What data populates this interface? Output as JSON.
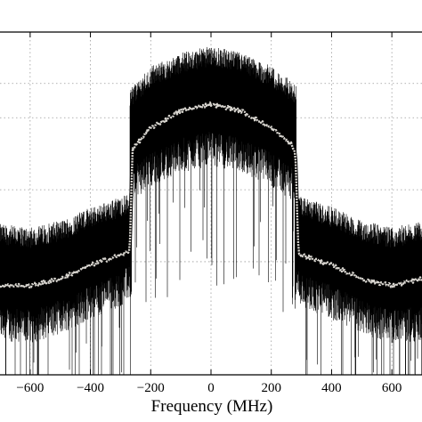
{
  "chart_data": {
    "type": "line",
    "title": "",
    "xlabel": "Frequency (MHz)",
    "ylabel": "",
    "xlim": [
      -700,
      700
    ],
    "ylim": [
      0,
      10
    ],
    "grid": true,
    "x_ticks": [
      -600,
      -400,
      -200,
      0,
      200,
      400,
      600
    ],
    "x_tick_labels": [
      "−600",
      "−400",
      "−200",
      "0",
      "200",
      "400",
      "600"
    ],
    "y_grid_values": [
      8.5,
      7.5,
      5.4,
      3.3
    ],
    "series": [
      {
        "style": "noisy-spectrum",
        "color": "#000000",
        "segments": [
          {
            "x": [
              -700,
              -600,
              -500,
              -400,
              -300,
              -270
            ],
            "upper": [
              4.1,
              4.0,
              4.2,
              4.6,
              4.9,
              5.0
            ],
            "lower": [
              1.3,
              1.2,
              1.5,
              1.9,
              2.3,
              2.5
            ]
          },
          {
            "x": [
              -270,
              -200,
              -100,
              0,
              100,
              200,
              280
            ],
            "upper": [
              8.1,
              8.7,
              9.1,
              9.3,
              9.1,
              8.7,
              8.2
            ],
            "lower": [
              5.3,
              5.8,
              6.2,
              6.4,
              6.2,
              5.8,
              5.3
            ]
          },
          {
            "x": [
              280,
              300,
              400,
              500,
              600,
              700
            ],
            "upper": [
              5.0,
              4.9,
              4.6,
              4.2,
              4.0,
              4.2
            ],
            "lower": [
              2.5,
              2.3,
              1.9,
              1.5,
              1.2,
              1.3
            ]
          }
        ]
      },
      {
        "style": "mean-curve",
        "color": "#d9d6d0",
        "x": [
          -700,
          -600,
          -500,
          -400,
          -300,
          -270,
          -260,
          -200,
          -100,
          0,
          100,
          200,
          270,
          280,
          290,
          300,
          400,
          500,
          600,
          700
        ],
        "y": [
          2.6,
          2.6,
          2.8,
          3.2,
          3.5,
          3.6,
          6.6,
          7.2,
          7.7,
          7.9,
          7.7,
          7.2,
          6.7,
          6.4,
          3.6,
          3.5,
          3.2,
          2.8,
          2.6,
          2.8
        ]
      }
    ]
  }
}
